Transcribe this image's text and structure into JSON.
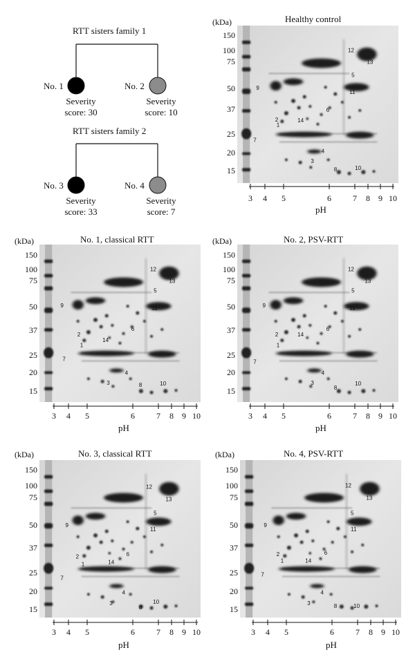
{
  "families": [
    {
      "title": "RTT sisters family 1",
      "members": [
        {
          "no": "No. 1",
          "severity_label": "Severity",
          "score_label": "score: 30",
          "fill": "#000000"
        },
        {
          "no": "No. 2",
          "severity_label": "Severity",
          "score_label": "score: 10",
          "fill": "#8c8c8c"
        }
      ]
    },
    {
      "title": "RTT sisters family 2",
      "members": [
        {
          "no": "No. 3",
          "severity_label": "Severity",
          "score_label": "score: 33",
          "fill": "#000000"
        },
        {
          "no": "No. 4",
          "severity_label": "Severity",
          "score_label": "score: 7",
          "fill": "#8c8c8c"
        }
      ]
    }
  ],
  "panels": [
    {
      "title": "Healthy control"
    },
    {
      "title": "No. 1, classical RTT"
    },
    {
      "title": "No. 2, PSV-RTT"
    },
    {
      "title": "No. 3, classical RTT"
    },
    {
      "title": "No. 4, PSV-RTT"
    }
  ],
  "axis": {
    "y_unit": "(kDa)",
    "mw_markers": [
      "150",
      "100",
      "75",
      "50",
      "37",
      "25",
      "20",
      "15"
    ],
    "x_label": "pH",
    "ph_ticks": [
      "3",
      "4",
      "5",
      "6",
      "7",
      "8",
      "9",
      "10"
    ]
  },
  "spot_labels": [
    "1",
    "2",
    "3",
    "4",
    "5",
    "6",
    "7",
    "8",
    "9",
    "10",
    "11",
    "12",
    "13",
    "14"
  ]
}
